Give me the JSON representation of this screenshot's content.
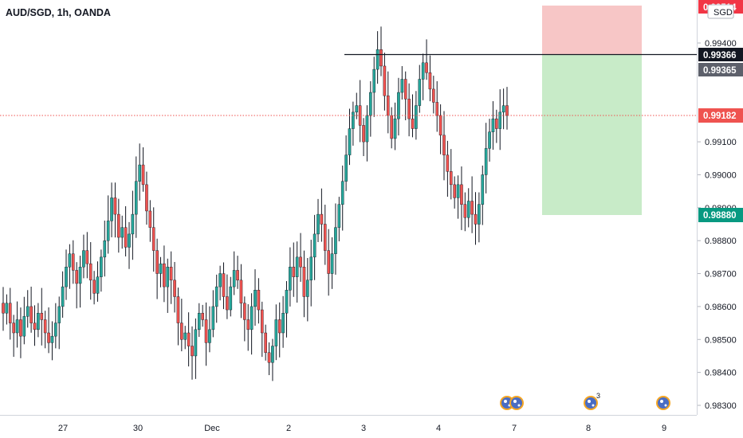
{
  "header": {
    "symbol_title": "AUD/SGD, 1h, OANDA"
  },
  "currency_badge": "SGD",
  "price_tags": {
    "stop_loss": "0.99514",
    "resistance": "0.99366",
    "entry": "0.99365",
    "current": "0.99182",
    "take_profit": "0.98880"
  },
  "event_badge_count": "3",
  "colors": {
    "up": "#26a69a",
    "down": "#ef5350",
    "wick": "#131722",
    "stop_zone": "#f7c6c6",
    "target_zone": "#c8ebc8",
    "stop_tag": "#f23645",
    "target_tag": "#089981",
    "current_tag": "#ef5350",
    "resistance_tag": "#131722",
    "entry_tag": "#5d606b"
  },
  "chart_data": {
    "type": "candlestick",
    "title": "AUD/SGD, 1h, OANDA",
    "x_ticks": [
      "27",
      "30",
      "Dec",
      "2",
      "3",
      "4",
      "7",
      "8",
      "9"
    ],
    "y_ticks": [
      0.983,
      0.984,
      0.985,
      0.986,
      0.987,
      0.988,
      0.989,
      0.99,
      0.991,
      0.994
    ],
    "y_range": [
      0.98275,
      0.9953
    ],
    "grid": false,
    "horizontal_line": 0.99366,
    "current_price": 0.99182,
    "position": {
      "entry": 0.99365,
      "stop": 0.99514,
      "target": 0.9888,
      "side": "short"
    },
    "close_series": [
      0.9858,
      0.9861,
      0.9855,
      0.9852,
      0.9856,
      0.9851,
      0.9857,
      0.986,
      0.9855,
      0.9853,
      0.9858,
      0.9856,
      0.9852,
      0.9849,
      0.9851,
      0.9855,
      0.986,
      0.9866,
      0.9872,
      0.9876,
      0.9871,
      0.9867,
      0.9872,
      0.9877,
      0.9873,
      0.9868,
      0.9864,
      0.9869,
      0.9875,
      0.988,
      0.9886,
      0.9893,
      0.9888,
      0.9881,
      0.9884,
      0.9878,
      0.9882,
      0.9888,
      0.9898,
      0.9903,
      0.9897,
      0.9889,
      0.9884,
      0.9877,
      0.987,
      0.9873,
      0.9866,
      0.9872,
      0.9868,
      0.9863,
      0.9855,
      0.985,
      0.9852,
      0.9848,
      0.9845,
      0.9853,
      0.9858,
      0.9856,
      0.9849,
      0.9853,
      0.986,
      0.9866,
      0.987,
      0.9863,
      0.9859,
      0.9866,
      0.9871,
      0.9868,
      0.9861,
      0.9856,
      0.9853,
      0.986,
      0.9865,
      0.9859,
      0.9852,
      0.9846,
      0.9843,
      0.9848,
      0.9856,
      0.9852,
      0.9858,
      0.9865,
      0.9872,
      0.9869,
      0.9875,
      0.9872,
      0.9863,
      0.9868,
      0.9875,
      0.9882,
      0.9888,
      0.9885,
      0.9877,
      0.987,
      0.9876,
      0.9884,
      0.9891,
      0.9898,
      0.9906,
      0.9914,
      0.9919,
      0.9921,
      0.9915,
      0.991,
      0.9918,
      0.9925,
      0.9932,
      0.9938,
      0.9933,
      0.9924,
      0.9918,
      0.9911,
      0.9917,
      0.9925,
      0.9929,
      0.9923,
      0.9917,
      0.9914,
      0.9921,
      0.9929,
      0.9934,
      0.9931,
      0.9926,
      0.9922,
      0.9918,
      0.9912,
      0.9906,
      0.9901,
      0.9897,
      0.9893,
      0.9897,
      0.9891,
      0.9887,
      0.9892,
      0.9888,
      0.9885,
      0.9891,
      0.99,
      0.9908,
      0.9913,
      0.9917,
      0.9914,
      0.9919,
      0.9921,
      0.9918
    ]
  }
}
